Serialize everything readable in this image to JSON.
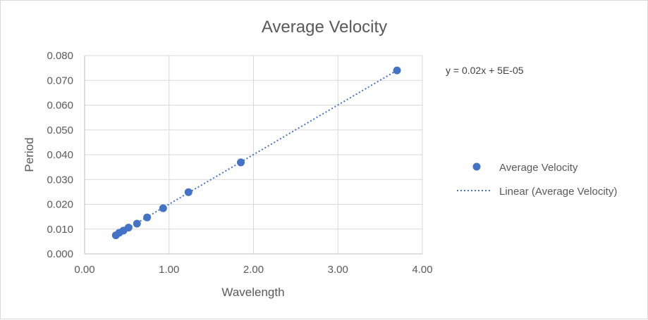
{
  "chart_data": {
    "type": "scatter",
    "title": "Average Velocity",
    "xlabel": "Wavelength",
    "ylabel": "Period",
    "xlim": [
      0,
      4
    ],
    "ylim": [
      0,
      0.08
    ],
    "x_ticks": [
      "0.00",
      "1.00",
      "2.00",
      "3.00",
      "4.00"
    ],
    "x_tick_values": [
      0,
      1,
      2,
      3,
      4
    ],
    "y_ticks": [
      "0.000",
      "0.010",
      "0.020",
      "0.030",
      "0.040",
      "0.050",
      "0.060",
      "0.070",
      "0.080"
    ],
    "y_tick_values": [
      0,
      0.01,
      0.02,
      0.03,
      0.04,
      0.05,
      0.06,
      0.07,
      0.08
    ],
    "grid": true,
    "series": [
      {
        "name": "Average Velocity",
        "color": "#4472c4",
        "x": [
          0.37,
          0.41,
          0.46,
          0.52,
          0.62,
          0.74,
          0.93,
          1.23,
          1.85,
          3.7
        ],
        "y": [
          0.0075,
          0.0085,
          0.0094,
          0.0106,
          0.0122,
          0.0147,
          0.0184,
          0.0249,
          0.0369,
          0.074
        ]
      }
    ],
    "trendline": {
      "name": "Linear (Average Velocity)",
      "type": "linear",
      "slope": 0.02,
      "intercept": 5e-05,
      "color": "#4472c4",
      "style": "dotted",
      "equation": "y = 0.02x + 5E-05"
    },
    "legend": {
      "position": "right",
      "entries": [
        "Average Velocity",
        "Linear (Average Velocity)"
      ]
    }
  }
}
